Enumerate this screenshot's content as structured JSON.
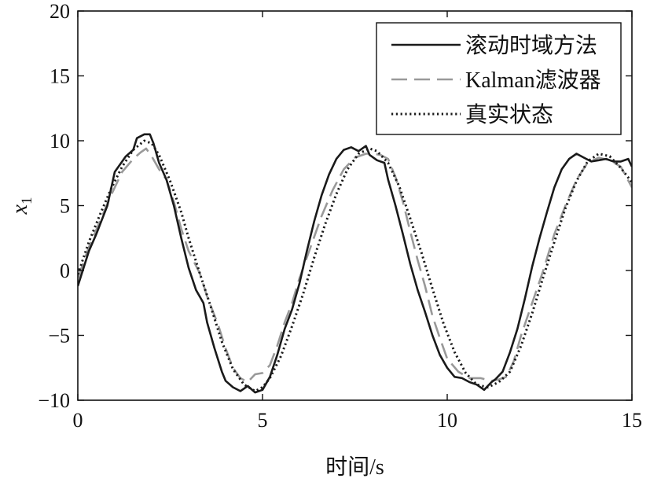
{
  "chart_data": {
    "type": "line",
    "title": "",
    "xlabel": "时间/s",
    "ylabel_main": "x",
    "ylabel_sub": "1",
    "xlim": [
      0,
      15
    ],
    "ylim": [
      -10,
      20
    ],
    "xticks": [
      0,
      5,
      10,
      15
    ],
    "yticks": [
      -10,
      -5,
      0,
      5,
      10,
      15,
      20
    ],
    "xtick_labels": [
      "0",
      "5",
      "10",
      "15"
    ],
    "ytick_labels": [
      "−10",
      "−5",
      "0",
      "5",
      "10",
      "15",
      "20"
    ],
    "grid": false,
    "legend_position": "top-right",
    "series": [
      {
        "name": "滚动时域方法",
        "color": "#1a1a1a",
        "dash": "solid",
        "x": [
          0,
          0.3,
          0.5,
          0.8,
          1.0,
          1.3,
          1.5,
          1.6,
          1.8,
          1.95,
          2.05,
          2.2,
          2.4,
          2.6,
          2.8,
          3.0,
          3.2,
          3.4,
          3.5,
          3.7,
          3.9,
          4.0,
          4.2,
          4.4,
          4.6,
          4.8,
          5.0,
          5.2,
          5.4,
          5.6,
          5.8,
          6.0,
          6.2,
          6.4,
          6.6,
          6.8,
          7.0,
          7.2,
          7.4,
          7.6,
          7.8,
          7.9,
          8.1,
          8.3,
          8.4,
          8.6,
          8.8,
          9.0,
          9.2,
          9.4,
          9.6,
          9.8,
          10.0,
          10.2,
          10.4,
          10.6,
          10.8,
          11.0,
          11.2,
          11.3,
          11.5,
          11.7,
          11.9,
          12.1,
          12.3,
          12.5,
          12.7,
          12.9,
          13.1,
          13.3,
          13.5,
          13.7,
          13.9,
          14.1,
          14.3,
          14.5,
          14.7,
          14.9,
          15.0
        ],
        "y": [
          -1.2,
          1.5,
          2.8,
          5.0,
          7.6,
          8.8,
          9.3,
          10.2,
          10.5,
          10.5,
          9.8,
          8.3,
          7.0,
          5.0,
          2.5,
          0.2,
          -1.5,
          -2.5,
          -4.0,
          -6.0,
          -7.8,
          -8.5,
          -9.0,
          -9.3,
          -8.9,
          -9.4,
          -9.2,
          -8.2,
          -6.5,
          -4.5,
          -3.0,
          -1.0,
          1.5,
          3.8,
          5.8,
          7.4,
          8.6,
          9.3,
          9.5,
          9.2,
          9.6,
          8.9,
          8.5,
          8.3,
          7.0,
          5.0,
          2.8,
          0.5,
          -1.5,
          -3.2,
          -5.0,
          -6.5,
          -7.5,
          -8.2,
          -8.3,
          -8.6,
          -8.8,
          -9.2,
          -8.6,
          -8.4,
          -7.8,
          -6.3,
          -4.5,
          -2.2,
          0.3,
          2.5,
          4.5,
          6.4,
          7.8,
          8.6,
          9.0,
          8.7,
          8.4,
          8.5,
          8.6,
          8.4,
          8.4,
          8.6,
          8.0
        ]
      },
      {
        "name": "Kalman滤波器",
        "color": "#999999",
        "dash": "long-dash",
        "x": [
          0,
          0.3,
          0.6,
          0.9,
          1.2,
          1.5,
          1.7,
          1.85,
          2.0,
          2.2,
          2.4,
          2.6,
          2.8,
          3.0,
          3.3,
          3.5,
          3.8,
          4.0,
          4.2,
          4.4,
          4.6,
          4.8,
          5.0,
          5.2,
          5.4,
          5.6,
          5.8,
          6.0,
          6.3,
          6.6,
          6.9,
          7.2,
          7.5,
          7.8,
          8.0,
          8.2,
          8.4,
          8.6,
          8.8,
          9.0,
          9.2,
          9.4,
          9.6,
          9.8,
          10.0,
          10.3,
          10.6,
          10.9,
          11.2,
          11.4,
          11.6,
          11.8,
          12.0,
          12.3,
          12.6,
          12.9,
          13.2,
          13.5,
          13.8,
          14.1,
          14.4,
          14.7,
          15.0
        ],
        "y": [
          -0.6,
          1.8,
          3.8,
          5.8,
          7.6,
          8.6,
          9.1,
          9.4,
          8.8,
          7.8,
          7.0,
          5.3,
          3.2,
          1.5,
          -0.2,
          -2.0,
          -4.2,
          -6.0,
          -7.5,
          -8.3,
          -8.6,
          -8.0,
          -7.9,
          -7.3,
          -5.8,
          -4.0,
          -2.5,
          -0.6,
          1.8,
          4.2,
          6.2,
          7.8,
          8.7,
          9.0,
          9.0,
          8.9,
          8.6,
          7.2,
          5.3,
          3.0,
          0.8,
          -1.2,
          -3.5,
          -5.2,
          -6.8,
          -7.8,
          -8.3,
          -8.3,
          -8.5,
          -8.4,
          -8.2,
          -7.0,
          -5.0,
          -2.5,
          0.0,
          2.8,
          5.0,
          7.0,
          8.3,
          8.7,
          8.5,
          8.0,
          6.4
        ]
      },
      {
        "name": "真实状态",
        "color": "#1a1a1a",
        "dash": "dotted",
        "x": [
          0,
          0.3,
          0.6,
          0.9,
          1.2,
          1.5,
          1.8,
          2.0,
          2.2,
          2.5,
          2.8,
          3.0,
          3.3,
          3.6,
          3.9,
          4.2,
          4.5,
          4.8,
          5.0,
          5.2,
          5.5,
          5.8,
          6.1,
          6.4,
          6.7,
          7.0,
          7.3,
          7.6,
          7.9,
          8.1,
          8.4,
          8.7,
          9.0,
          9.3,
          9.6,
          9.9,
          10.2,
          10.5,
          10.8,
          11.1,
          11.4,
          11.7,
          12.0,
          12.3,
          12.6,
          12.9,
          13.2,
          13.5,
          13.8,
          14.1,
          14.4,
          14.7,
          15.0
        ],
        "y": [
          -0.3,
          2.2,
          4.3,
          6.3,
          8.0,
          9.3,
          10.0,
          9.8,
          8.9,
          6.9,
          4.5,
          2.5,
          -0.2,
          -2.8,
          -5.5,
          -7.6,
          -8.8,
          -9.3,
          -9.0,
          -8.3,
          -6.6,
          -4.3,
          -1.8,
          1.0,
          3.6,
          5.9,
          7.8,
          9.0,
          9.4,
          9.2,
          8.3,
          6.5,
          4.0,
          1.4,
          -1.4,
          -4.1,
          -6.3,
          -7.9,
          -8.8,
          -9.0,
          -8.6,
          -7.8,
          -5.8,
          -3.3,
          -0.5,
          2.2,
          4.8,
          6.9,
          8.4,
          9.0,
          8.8,
          7.9,
          6.8
        ]
      }
    ]
  }
}
